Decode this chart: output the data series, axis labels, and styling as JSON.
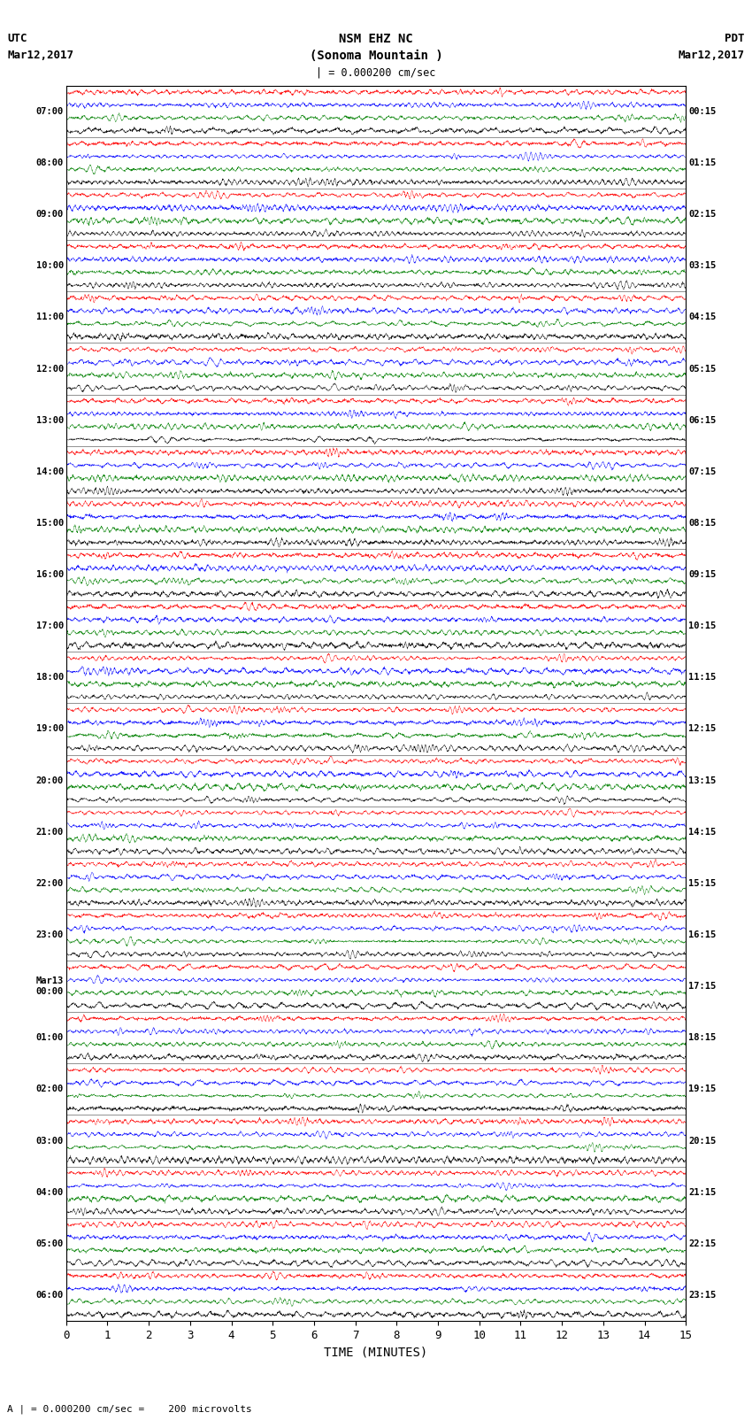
{
  "title_line1": "NSM EHZ NC",
  "title_line2": "(Sonoma Mountain )",
  "title_line3": "| = 0.000200 cm/sec",
  "left_header_line1": "UTC",
  "left_header_line2": "Mar12,2017",
  "right_header_line1": "PDT",
  "right_header_line2": "Mar12,2017",
  "xlabel": "TIME (MINUTES)",
  "footer": "A | = 0.000200 cm/sec =    200 microvolts",
  "left_times": [
    "07:00",
    "08:00",
    "09:00",
    "10:00",
    "11:00",
    "12:00",
    "13:00",
    "14:00",
    "15:00",
    "16:00",
    "17:00",
    "18:00",
    "19:00",
    "20:00",
    "21:00",
    "22:00",
    "23:00",
    "Mar13\n00:00",
    "01:00",
    "02:00",
    "03:00",
    "04:00",
    "05:00",
    "06:00"
  ],
  "right_times": [
    "00:15",
    "01:15",
    "02:15",
    "03:15",
    "04:15",
    "05:15",
    "06:15",
    "07:15",
    "08:15",
    "09:15",
    "10:15",
    "11:15",
    "12:15",
    "13:15",
    "14:15",
    "15:15",
    "16:15",
    "17:15",
    "18:15",
    "19:15",
    "20:15",
    "21:15",
    "22:15",
    "23:15"
  ],
  "n_rows": 24,
  "n_traces_per_row": 4,
  "colors": [
    "red",
    "blue",
    "green",
    "black"
  ],
  "xlim": [
    0,
    15
  ],
  "xticks": [
    0,
    1,
    2,
    3,
    4,
    5,
    6,
    7,
    8,
    9,
    10,
    11,
    12,
    13,
    14,
    15
  ],
  "bg_color": "white",
  "plot_bg": "white",
  "trace_amplitude": 0.38,
  "seed": 42
}
